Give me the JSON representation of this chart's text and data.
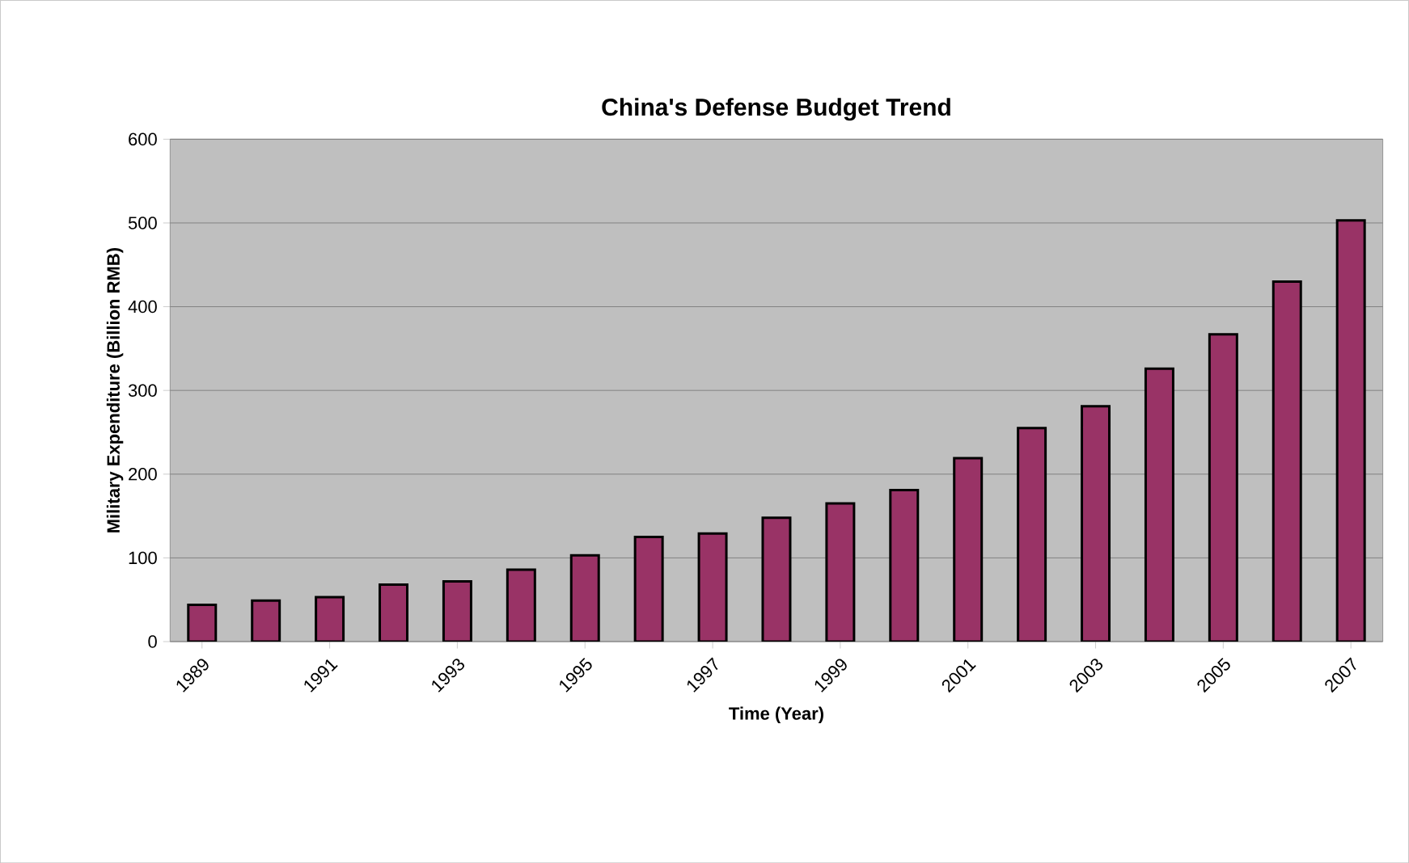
{
  "chart_data": {
    "type": "bar",
    "title": "China's Defense Budget Trend",
    "xlabel": "Time (Year)",
    "ylabel": "Military Expenditure (Billion RMB)",
    "categories": [
      "1989",
      null,
      "1991",
      null,
      "1993",
      null,
      "1995",
      null,
      "1997",
      null,
      "1999",
      null,
      "2001",
      null,
      "2003",
      null,
      "2005",
      null,
      "2007"
    ],
    "values": [
      44,
      49,
      53,
      68,
      72,
      86,
      103,
      125,
      129,
      148,
      165,
      181,
      219,
      255,
      281,
      326,
      367,
      430,
      503
    ],
    "color": "#993366",
    "ylim": [
      0,
      600
    ],
    "yticks": [
      0,
      100,
      200,
      300,
      400,
      500,
      600
    ],
    "grid": "y"
  }
}
